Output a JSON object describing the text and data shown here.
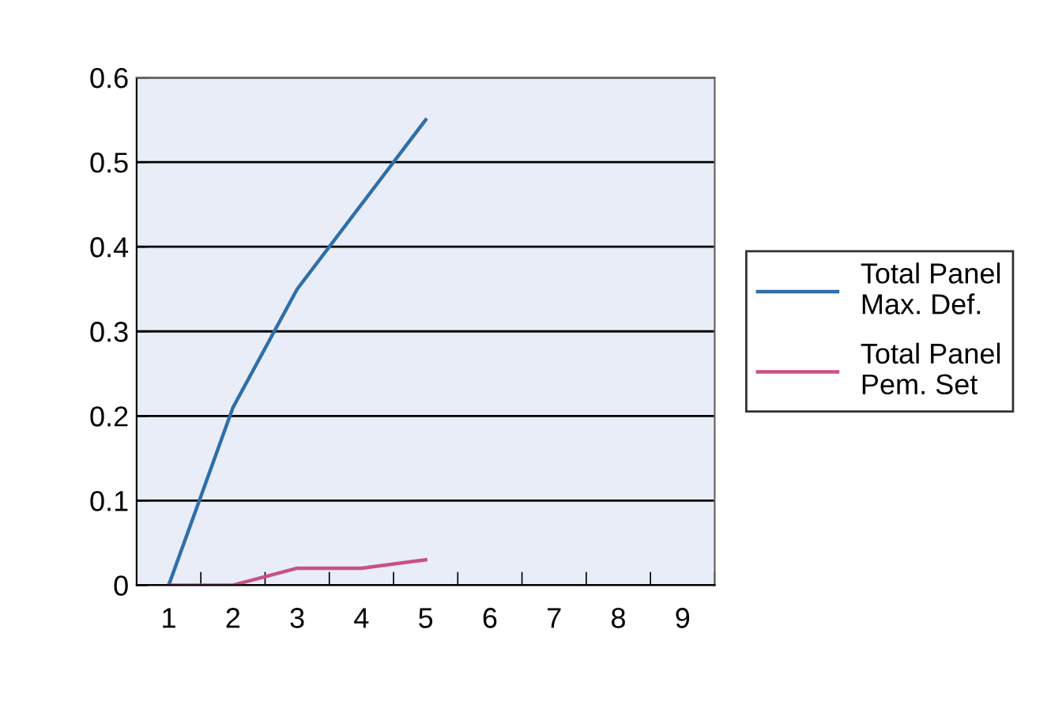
{
  "chart_data": {
    "type": "line",
    "categories": [
      "1",
      "2",
      "3",
      "4",
      "5",
      "6",
      "7",
      "8",
      "9"
    ],
    "series": [
      {
        "name": "Total Panel\nMax. Def.",
        "color": "#2f6fa8",
        "values": [
          0,
          0.21,
          0.35,
          0.45,
          0.55,
          null,
          null,
          null,
          null
        ]
      },
      {
        "name": "Total Panel\nPem. Set",
        "color": "#c8508a",
        "values": [
          0,
          0,
          0.02,
          0.02,
          0.03,
          null,
          null,
          null,
          null
        ]
      }
    ],
    "ylim": [
      0,
      0.6
    ],
    "yticks": [
      0,
      0.1,
      0.2,
      0.3,
      0.4,
      0.5,
      0.6
    ],
    "grid": "y",
    "legend": "right",
    "marker": "none",
    "line_style": "solid"
  }
}
